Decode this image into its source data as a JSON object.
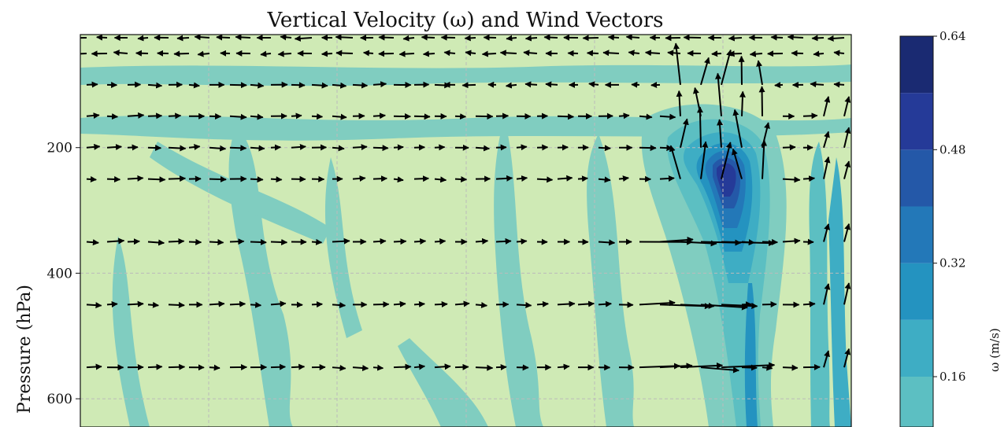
{
  "chart_data": {
    "type": "heatmap",
    "title": "Vertical Velocity (ω) and Wind Vectors",
    "ylabel": "Pressure (hPa)",
    "xlabel": "",
    "y_axis": {
      "inverted": true,
      "ticks": [
        200,
        400,
        600
      ],
      "ylim": [
        1000,
        20
      ]
    },
    "x_axis": {
      "ticks_labeled": false,
      "gridlines": 6
    },
    "grid": true,
    "colorbar": {
      "label": "ω (m/s)",
      "ticks": [
        "0.16",
        "0.32",
        "0.48",
        "0.64"
      ],
      "levels": [
        0.0,
        0.08,
        0.16,
        0.24,
        0.32,
        0.4,
        0.48,
        0.56,
        0.64
      ],
      "colors": [
        "#cfeab5",
        "#80cdc0",
        "#5cbfc2",
        "#3eadc4",
        "#2493c0",
        "#2378b8",
        "#2458a8",
        "#253a98",
        "#1a2a72"
      ]
    },
    "features": {
      "updraft_core": {
        "pressure_hPa": 220,
        "omega": 0.6
      },
      "background_omega": 0.02,
      "vector_levels_hPa": [
        25,
        50,
        100,
        150,
        200,
        250,
        350,
        450,
        550
      ]
    }
  },
  "colors": {
    "background": "#cfeab5",
    "light_band": "#80cdc0",
    "vector": "#000000"
  }
}
